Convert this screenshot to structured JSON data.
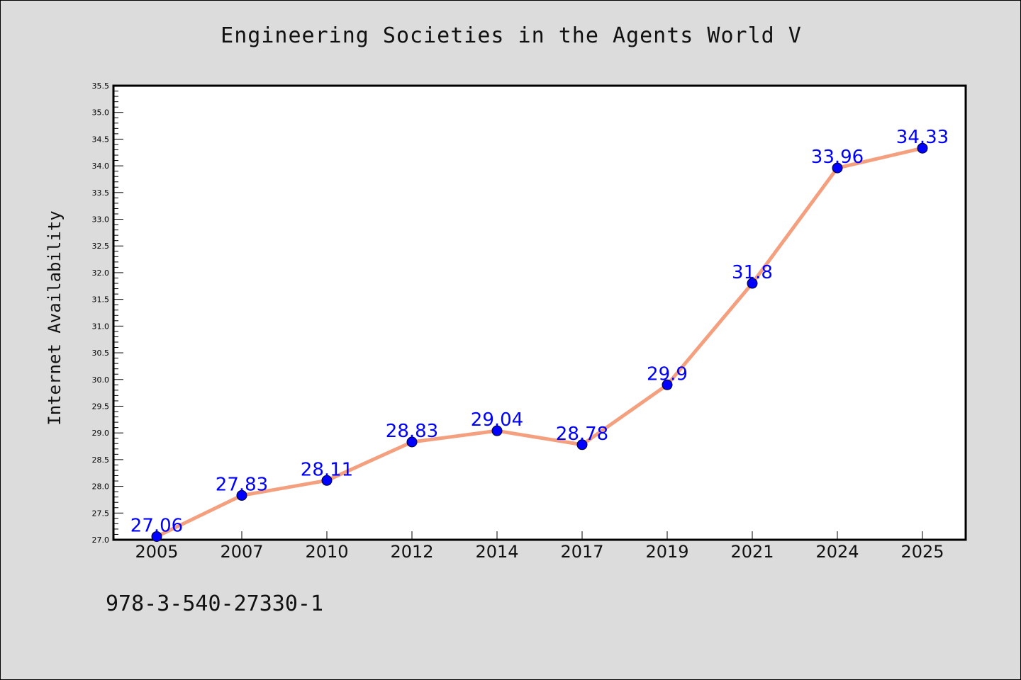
{
  "chart_data": {
    "type": "line",
    "title": "Engineering Societies in the Agents World V",
    "xlabel": "",
    "ylabel": "Internet Availability",
    "categories": [
      "2005",
      "2007",
      "2010",
      "2012",
      "2014",
      "2017",
      "2019",
      "2021",
      "2024",
      "2025"
    ],
    "values": [
      27.06,
      27.83,
      28.11,
      28.83,
      29.04,
      28.78,
      29.9,
      31.8,
      33.96,
      34.33
    ],
    "data_labels": [
      "27.06",
      "27.83",
      "28.11",
      "28.83",
      "29.04",
      "28.78",
      "29.9",
      "31.8",
      "33.96",
      "34.33"
    ],
    "ylim": [
      27.0,
      35.5
    ],
    "yticks": [
      "27.0",
      "27.5",
      "28.0",
      "28.5",
      "29.0",
      "29.5",
      "30.0",
      "30.5",
      "31.0",
      "31.5",
      "32.0",
      "32.5",
      "33.0",
      "33.5",
      "34.0",
      "34.5",
      "35.0",
      "35.5"
    ],
    "grid": false,
    "line_color": "#f4a07f",
    "marker_color": "#0000ff",
    "label_color": "#0000ff"
  },
  "footnote": "978-3-540-27330-1"
}
